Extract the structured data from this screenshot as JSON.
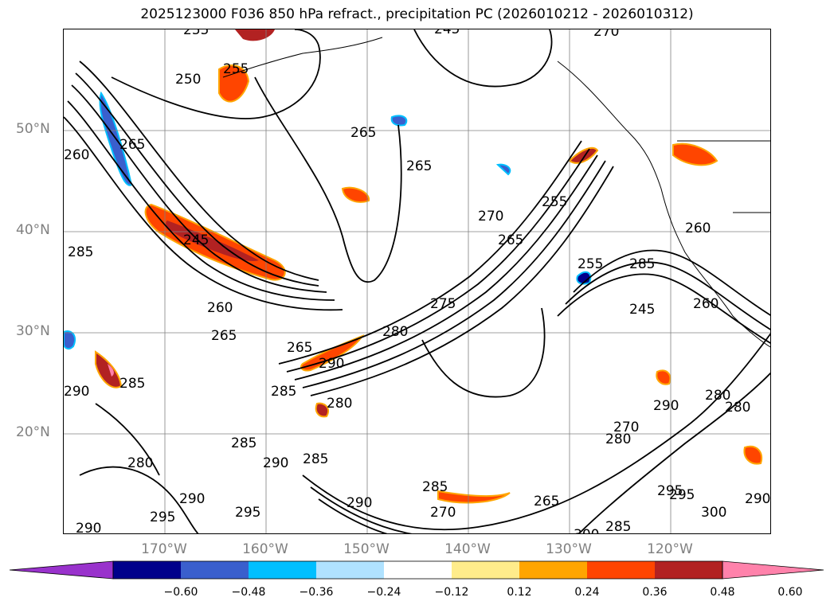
{
  "title": "2025123000 F036 850 hPa refract., precipitation PC (2026010212 - 2026010312)",
  "map": {
    "lat_labels": [
      "50°N",
      "40°N",
      "30°N",
      "20°N"
    ],
    "lon_labels": [
      "170°W",
      "160°W",
      "150°W",
      "140°W",
      "130°W",
      "120°W"
    ],
    "contour_labels": [
      "255",
      "250",
      "255",
      "265",
      "260",
      "265",
      "270",
      "265",
      "270",
      "255",
      "245",
      "265",
      "245",
      "255",
      "260",
      "275",
      "260",
      "265",
      "280",
      "285",
      "265",
      "290",
      "285",
      "245",
      "285",
      "260",
      "290",
      "285",
      "280",
      "285",
      "280",
      "290",
      "280",
      "270",
      "290",
      "280",
      "280",
      "285",
      "290",
      "285",
      "290",
      "295",
      "290",
      "295",
      "300",
      "285",
      "295",
      "265",
      "270",
      "295",
      "300",
      "290"
    ],
    "colors": {
      "contour": "#000000",
      "grid": "#808080",
      "coast": "#000000"
    }
  },
  "colorbar": {
    "ticks": [
      "−0.60",
      "−0.48",
      "−0.36",
      "−0.24",
      "−0.12",
      "0.12",
      "0.24",
      "0.36",
      "0.48",
      "0.60"
    ],
    "colors": [
      "#9932cc",
      "#00008b",
      "#3a5fcd",
      "#00bfff",
      "#b0e2ff",
      "#ffffff",
      "#ffec8b",
      "#ffa500",
      "#ff4500",
      "#b22222",
      "#ff82ab"
    ]
  }
}
